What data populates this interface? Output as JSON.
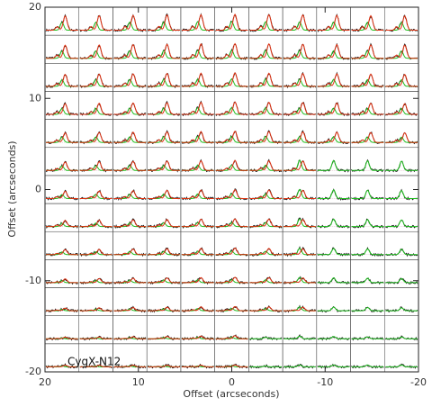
{
  "chart_data": {
    "type": "spectral-grid",
    "title": "CygX-N12",
    "xlabel": "Offset (arcseconds)",
    "ylabel": "Offset (arcseconds)",
    "xlim": [
      20,
      -20
    ],
    "ylim": [
      -20,
      20
    ],
    "xticks": [
      20,
      10,
      0,
      -10,
      -20
    ],
    "yticks": [
      20,
      10,
      0,
      -10,
      -20
    ]
  }
}
